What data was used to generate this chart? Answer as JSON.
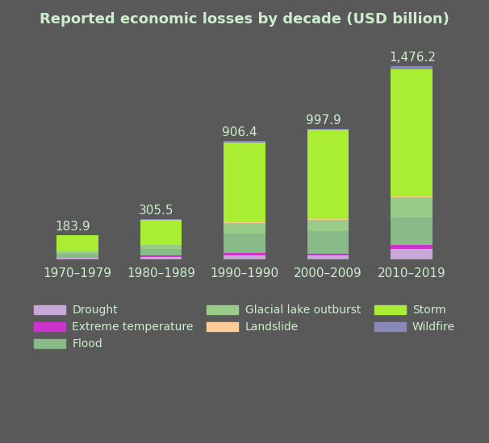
{
  "categories": [
    "1970–1979",
    "1980–1989",
    "1990–1990",
    "2000–2009",
    "2010–2019"
  ],
  "totals_str": [
    "183.9",
    "305.5",
    "906.4",
    "997.9",
    "1,476.2"
  ],
  "totals_float": [
    183.9,
    305.5,
    906.4,
    997.9,
    1476.2
  ],
  "raw_segments": {
    "Drought": [
      8,
      18,
      30,
      28,
      80
    ],
    "Extreme temperature": [
      4,
      12,
      18,
      15,
      30
    ],
    "Flood": [
      30,
      50,
      150,
      170,
      210
    ],
    "Glacial lake outburst": [
      20,
      30,
      80,
      90,
      150
    ],
    "Landslide": [
      1,
      2,
      5,
      5,
      10
    ],
    "Storm": [
      118,
      188,
      610,
      680,
      970
    ],
    "Wildfire": [
      2.9,
      5.5,
      13.4,
      9.9,
      26.2
    ]
  },
  "stacking_order": [
    "Drought",
    "Extreme temperature",
    "Flood",
    "Glacial lake outburst",
    "Landslide",
    "Storm",
    "Wildfire"
  ],
  "colors": {
    "Drought": "#c8a8d8",
    "Extreme temperature": "#cc33cc",
    "Flood": "#88bb88",
    "Glacial lake outburst": "#99cc88",
    "Landslide": "#ffcc99",
    "Storm": "#aaee33",
    "Wildfire": "#8888bb"
  },
  "background_color": "#595959",
  "text_color": "#cceecc",
  "title": "Reported economic losses by decade (USD billion)",
  "title_fontsize": 13,
  "label_fontsize": 11,
  "tick_fontsize": 11,
  "legend_fontsize": 10,
  "bar_width": 0.5,
  "ylim": [
    0,
    1700
  ]
}
